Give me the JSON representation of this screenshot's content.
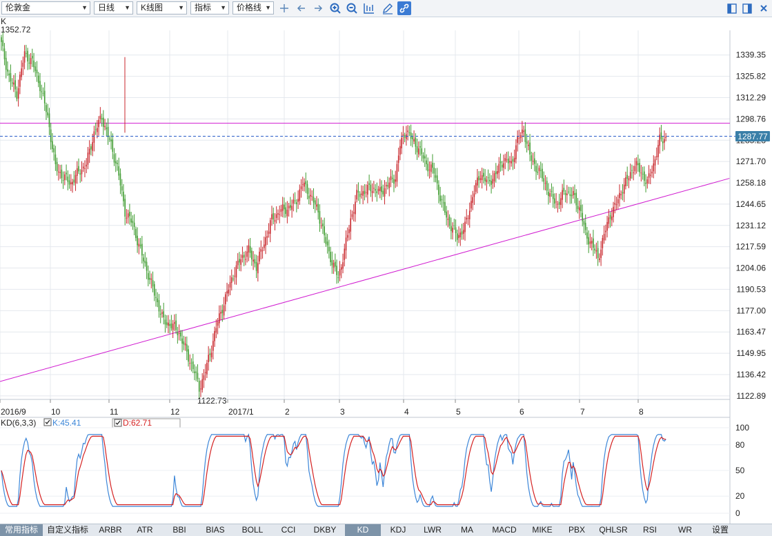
{
  "toolbar": {
    "symbol": "伦敦金",
    "period": "日线",
    "chart_type": "K线图",
    "indicator": "指标",
    "price_line": "价格线",
    "icons": [
      "crosshair-icon",
      "arrow-left-icon",
      "arrow-right-icon",
      "zoom-in-icon",
      "zoom-out-icon",
      "bar-chart-icon",
      "pencil-icon",
      "link-icon"
    ],
    "right_icons": [
      "panel-left-icon",
      "panel-right-icon",
      "close-icon"
    ]
  },
  "price_panel": {
    "label": "K",
    "high_label": "1352.72",
    "low_label": "1122.73",
    "current_price": "1287.77",
    "y_ticks": [
      "1339.35",
      "1325.82",
      "1312.29",
      "1298.76",
      "1285.23",
      "1271.70",
      "1258.18",
      "1244.65",
      "1231.12",
      "1217.59",
      "1204.06",
      "1190.53",
      "1177.00",
      "1163.47",
      "1149.95",
      "1136.42",
      "1122.89"
    ],
    "x_labels": [
      "2016/9",
      "10",
      "11",
      "12",
      "2017/1",
      "2",
      "3",
      "4",
      "5",
      "6",
      "7",
      "8"
    ]
  },
  "kd_panel": {
    "label": "KD(6,3,3)",
    "k_text": "K:45.41",
    "d_text": "D:62.71",
    "y_ticks": [
      "100",
      "80",
      "50",
      "20",
      "0"
    ]
  },
  "colors": {
    "up": "#c8262b",
    "down": "#3e9b2f",
    "trendline": "#d01ad0",
    "k_line": "#3c86d8",
    "d_line": "#d42020",
    "current_line": "#2a5cc8"
  },
  "bottom_tabs": [
    "常用指标",
    "自定义指标",
    "ARBR",
    "ATR",
    "BBI",
    "BIAS",
    "BOLL",
    "CCI",
    "DKBY",
    "KD",
    "KDJ",
    "LWR",
    "MA",
    "MACD",
    "MIKE",
    "PBX",
    "QHLSR",
    "RSI",
    "WR",
    "设置"
  ],
  "active_tab": "KD",
  "chart_data": {
    "type": "candlestick",
    "price_range": [
      1118,
      1355
    ],
    "key_levels": {
      "high": 1352.72,
      "low": 1122.73,
      "current": 1287.77
    },
    "anchor_closes": [
      [
        0,
        1346
      ],
      [
        5,
        1325
      ],
      [
        10,
        1315
      ],
      [
        15,
        1340
      ],
      [
        20,
        1335
      ],
      [
        25,
        1320
      ],
      [
        30,
        1300
      ],
      [
        35,
        1268
      ],
      [
        40,
        1262
      ],
      [
        45,
        1258
      ],
      [
        50,
        1265
      ],
      [
        55,
        1270
      ],
      [
        60,
        1290
      ],
      [
        65,
        1300
      ],
      [
        70,
        1285
      ],
      [
        75,
        1268
      ],
      [
        80,
        1240
      ],
      [
        85,
        1232
      ],
      [
        90,
        1215
      ],
      [
        95,
        1200
      ],
      [
        100,
        1185
      ],
      [
        105,
        1170
      ],
      [
        110,
        1168
      ],
      [
        115,
        1163
      ],
      [
        120,
        1150
      ],
      [
        125,
        1138
      ],
      [
        128,
        1128
      ],
      [
        131,
        1135
      ],
      [
        135,
        1150
      ],
      [
        140,
        1170
      ],
      [
        145,
        1185
      ],
      [
        150,
        1200
      ],
      [
        155,
        1210
      ],
      [
        160,
        1215
      ],
      [
        165,
        1205
      ],
      [
        170,
        1220
      ],
      [
        175,
        1235
      ],
      [
        180,
        1240
      ],
      [
        185,
        1242
      ],
      [
        190,
        1245
      ],
      [
        195,
        1258
      ],
      [
        200,
        1250
      ],
      [
        205,
        1240
      ],
      [
        210,
        1220
      ],
      [
        215,
        1205
      ],
      [
        218,
        1198
      ],
      [
        222,
        1215
      ],
      [
        226,
        1235
      ],
      [
        230,
        1250
      ],
      [
        235,
        1253
      ],
      [
        240,
        1255
      ],
      [
        245,
        1252
      ],
      [
        250,
        1257
      ],
      [
        255,
        1262
      ],
      [
        258,
        1282
      ],
      [
        262,
        1292
      ],
      [
        266,
        1285
      ],
      [
        270,
        1280
      ],
      [
        275,
        1270
      ],
      [
        280,
        1265
      ],
      [
        285,
        1245
      ],
      [
        290,
        1232
      ],
      [
        295,
        1224
      ],
      [
        300,
        1230
      ],
      [
        305,
        1250
      ],
      [
        310,
        1264
      ],
      [
        315,
        1258
      ],
      [
        320,
        1264
      ],
      [
        325,
        1273
      ],
      [
        330,
        1270
      ],
      [
        334,
        1285
      ],
      [
        338,
        1292
      ],
      [
        342,
        1275
      ],
      [
        346,
        1268
      ],
      [
        350,
        1262
      ],
      [
        355,
        1250
      ],
      [
        360,
        1245
      ],
      [
        365,
        1253
      ],
      [
        370,
        1250
      ],
      [
        375,
        1240
      ],
      [
        378,
        1225
      ],
      [
        382,
        1220
      ],
      [
        386,
        1210
      ],
      [
        390,
        1225
      ],
      [
        394,
        1238
      ],
      [
        398,
        1245
      ],
      [
        402,
        1255
      ],
      [
        406,
        1262
      ],
      [
        410,
        1270
      ],
      [
        414,
        1265
      ],
      [
        418,
        1258
      ],
      [
        422,
        1270
      ],
      [
        426,
        1285
      ],
      [
        430,
        1287
      ]
    ],
    "trendlines": [
      {
        "kind": "horizontal",
        "price": 1296
      },
      {
        "kind": "rising",
        "from": [
          0,
          1132
        ],
        "to": [
          472,
          1261
        ]
      }
    ],
    "kd": {
      "k": 45.41,
      "d": 62.71,
      "levels": [
        100,
        80,
        50,
        20,
        0
      ]
    }
  }
}
